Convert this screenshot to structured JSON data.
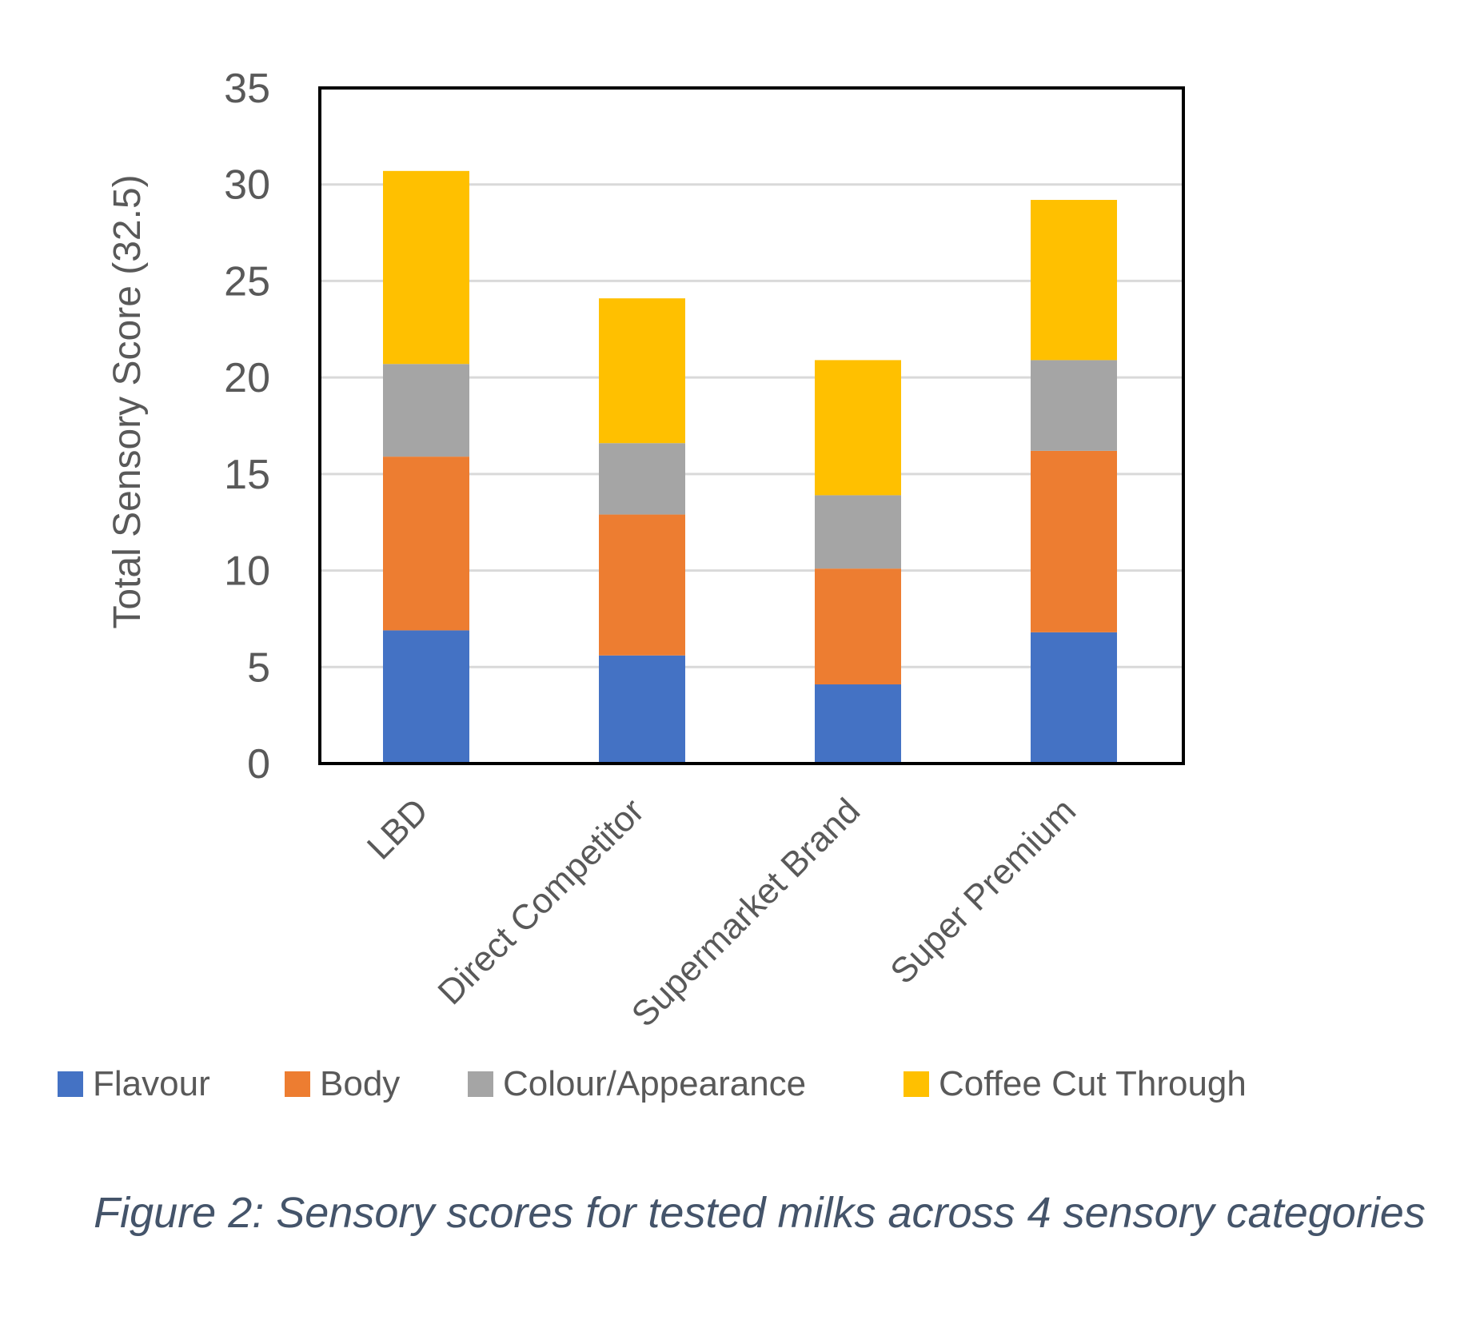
{
  "chart_data": {
    "type": "bar",
    "stacked": true,
    "categories": [
      "LBD",
      "Direct Competitor",
      "Supermarket Brand",
      "Super Premium"
    ],
    "series": [
      {
        "name": "Flavour",
        "color": "#4472c4",
        "values": [
          6.9,
          5.6,
          4.1,
          6.8
        ]
      },
      {
        "name": "Body",
        "color": "#ed7d31",
        "values": [
          9.0,
          7.3,
          6.0,
          9.4
        ]
      },
      {
        "name": "Colour/Appearance",
        "color": "#a5a5a5",
        "values": [
          4.8,
          3.7,
          3.8,
          4.7
        ]
      },
      {
        "name": "Coffee Cut Through",
        "color": "#ffc000",
        "values": [
          10.0,
          7.5,
          7.0,
          8.3
        ]
      }
    ],
    "ylabel": "Total Sensory Score (32.5)",
    "xlabel": "",
    "ylim": [
      0,
      35
    ],
    "yticks": [
      0,
      5,
      10,
      15,
      20,
      25,
      30,
      35
    ],
    "grid": true,
    "legend_position": "bottom"
  },
  "caption": "Figure 2: Sensory scores for tested milks across 4 sensory categories"
}
